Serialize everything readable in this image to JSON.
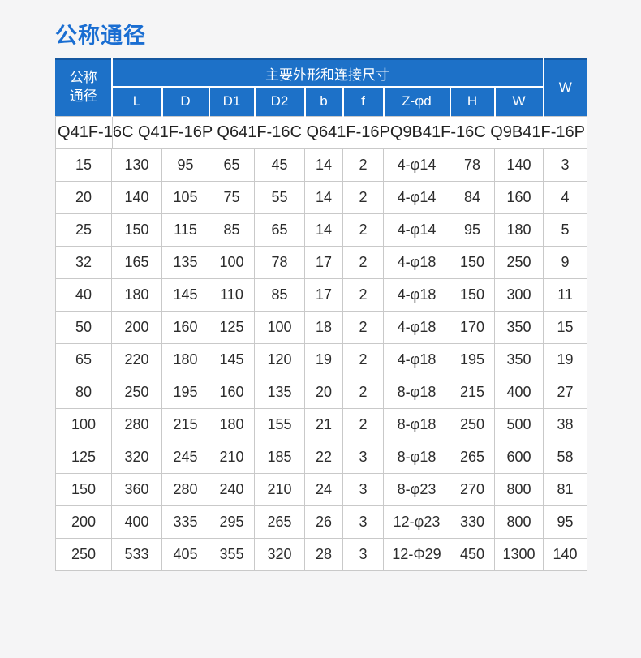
{
  "page": {
    "title": "公称通径"
  },
  "colors": {
    "title_blue": "#1a6ed2",
    "header_bg": "#1d71c8",
    "header_text": "#ffffff",
    "body_text": "#2c2c2c",
    "cell_border": "#c9c9c9",
    "page_background": "#f5f5f6"
  },
  "table": {
    "corner_header": "公称\n通径",
    "group_header": "主要外形和连接尺寸",
    "w_header": "W",
    "sub_headers": [
      "L",
      "D",
      "D1",
      "D2",
      "b",
      "f",
      "Z-φd",
      "H",
      "W"
    ],
    "models": "Q41F-16C Q41F-16P Q641F-16C Q641F-16PQ9B41F-16C Q9B41F-16P",
    "rows": [
      [
        "15",
        "130",
        "95",
        "65",
        "45",
        "14",
        "2",
        "4-φ14",
        "78",
        "140",
        "3"
      ],
      [
        "20",
        "140",
        "105",
        "75",
        "55",
        "14",
        "2",
        "4-φ14",
        "84",
        "160",
        "4"
      ],
      [
        "25",
        "150",
        "115",
        "85",
        "65",
        "14",
        "2",
        "4-φ14",
        "95",
        "180",
        "5"
      ],
      [
        "32",
        "165",
        "135",
        "100",
        "78",
        "17",
        "2",
        "4-φ18",
        "150",
        "250",
        "9"
      ],
      [
        "40",
        "180",
        "145",
        "110",
        "85",
        "17",
        "2",
        "4-φ18",
        "150",
        "300",
        "11"
      ],
      [
        "50",
        "200",
        "160",
        "125",
        "100",
        "18",
        "2",
        "4-φ18",
        "170",
        "350",
        "15"
      ],
      [
        "65",
        "220",
        "180",
        "145",
        "120",
        "19",
        "2",
        "4-φ18",
        "195",
        "350",
        "19"
      ],
      [
        "80",
        "250",
        "195",
        "160",
        "135",
        "20",
        "2",
        "8-φ18",
        "215",
        "400",
        "27"
      ],
      [
        "100",
        "280",
        "215",
        "180",
        "155",
        "21",
        "2",
        "8-φ18",
        "250",
        "500",
        "38"
      ],
      [
        "125",
        "320",
        "245",
        "210",
        "185",
        "22",
        "3",
        "8-φ18",
        "265",
        "600",
        "58"
      ],
      [
        "150",
        "360",
        "280",
        "240",
        "210",
        "24",
        "3",
        "8-φ23",
        "270",
        "800",
        "81"
      ],
      [
        "200",
        "400",
        "335",
        "295",
        "265",
        "26",
        "3",
        "12-φ23",
        "330",
        "800",
        "95"
      ],
      [
        "250",
        "533",
        "405",
        "355",
        "320",
        "28",
        "3",
        "12-Φ29",
        "450",
        "1300",
        "140"
      ]
    ]
  }
}
